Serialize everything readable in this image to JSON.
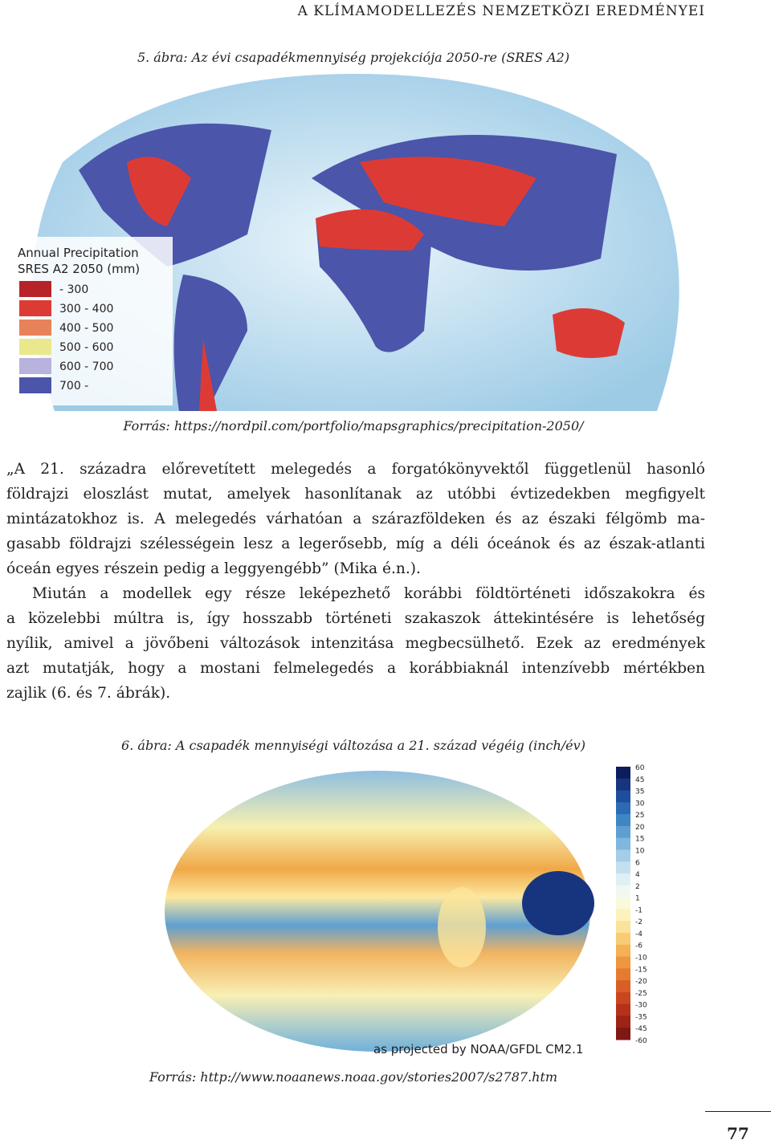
{
  "header": {
    "title": "A KLÍMAMODELLEZÉS NEMZETKÖZI EREDMÉNYEI"
  },
  "figure1": {
    "caption": "5. ábra: Az évi csapadékmennyiség projekciója 2050-re (SRES A2)",
    "legend": {
      "title": [
        "Annual Precipitation",
        "SRES A2 2050 (mm)"
      ],
      "items": [
        {
          "label": "- 300",
          "color": "#b8232a"
        },
        {
          "label": "300 - 400",
          "color": "#dc3b35"
        },
        {
          "label": "400 - 500",
          "color": "#e7825a"
        },
        {
          "label": "500 - 600",
          "color": "#e9e88d"
        },
        {
          "label": "600 - 700",
          "color": "#b7b3dd"
        },
        {
          "label": "700 -",
          "color": "#4b55aa"
        }
      ]
    },
    "source": "Forrás: https://nordpil.com/portfolio/mapsgraphics/precipitation-2050/"
  },
  "body": {
    "paragraphs": [
      {
        "lines": [
          "„A 21. századra előrevetített melegedés a forgatókönyvektől függetlenül hasonló",
          "földrajzi eloszlást mutat, amelyek hasonlítanak az utóbbi évtizedekben megfigyelt",
          "mintázatokhoz is. A melegedés várhatóan a szárazföldeken és az északi félgömb ma-",
          "gasabb földrajzi szélességein lesz a legerősebb, míg a déli óceánok és az észak-atlanti",
          "óceán egyes részein pedig a leggyengébb” (Mika é.n.)."
        ]
      },
      {
        "lines": [
          "Miután a modellek egy része leképezhető korábbi földtörténeti időszakokra és",
          "a közelebbi múltra is, így hosszabb történeti szakaszok áttekintésére is lehetőség",
          "nyílik, amivel a jövőbeni változások intenzitása megbecsülhető. Ezek az eredmények",
          "azt mutatják, hogy a mostani felmelegedés a korábbiaknál intenzívebb mértékben",
          "zajlik (6. és 7. ábrák)."
        ]
      }
    ]
  },
  "figure2": {
    "caption": "6. ábra: A csapadék mennyiségi változása a 21. század végéig (inch/év)",
    "colorbar": {
      "ticks": [
        60,
        45,
        35,
        30,
        25,
        20,
        15,
        10,
        6,
        4,
        2,
        1,
        -1,
        -2,
        -4,
        -6,
        -10,
        -15,
        -20,
        -25,
        -30,
        -35,
        -45,
        -60
      ]
    },
    "credit": "as projected by NOAA/GFDL CM2.1",
    "source": "Forrás: http://www.noaanews.noaa.gov/stories2007/s2787.htm"
  },
  "footer": {
    "page_number": "77"
  }
}
